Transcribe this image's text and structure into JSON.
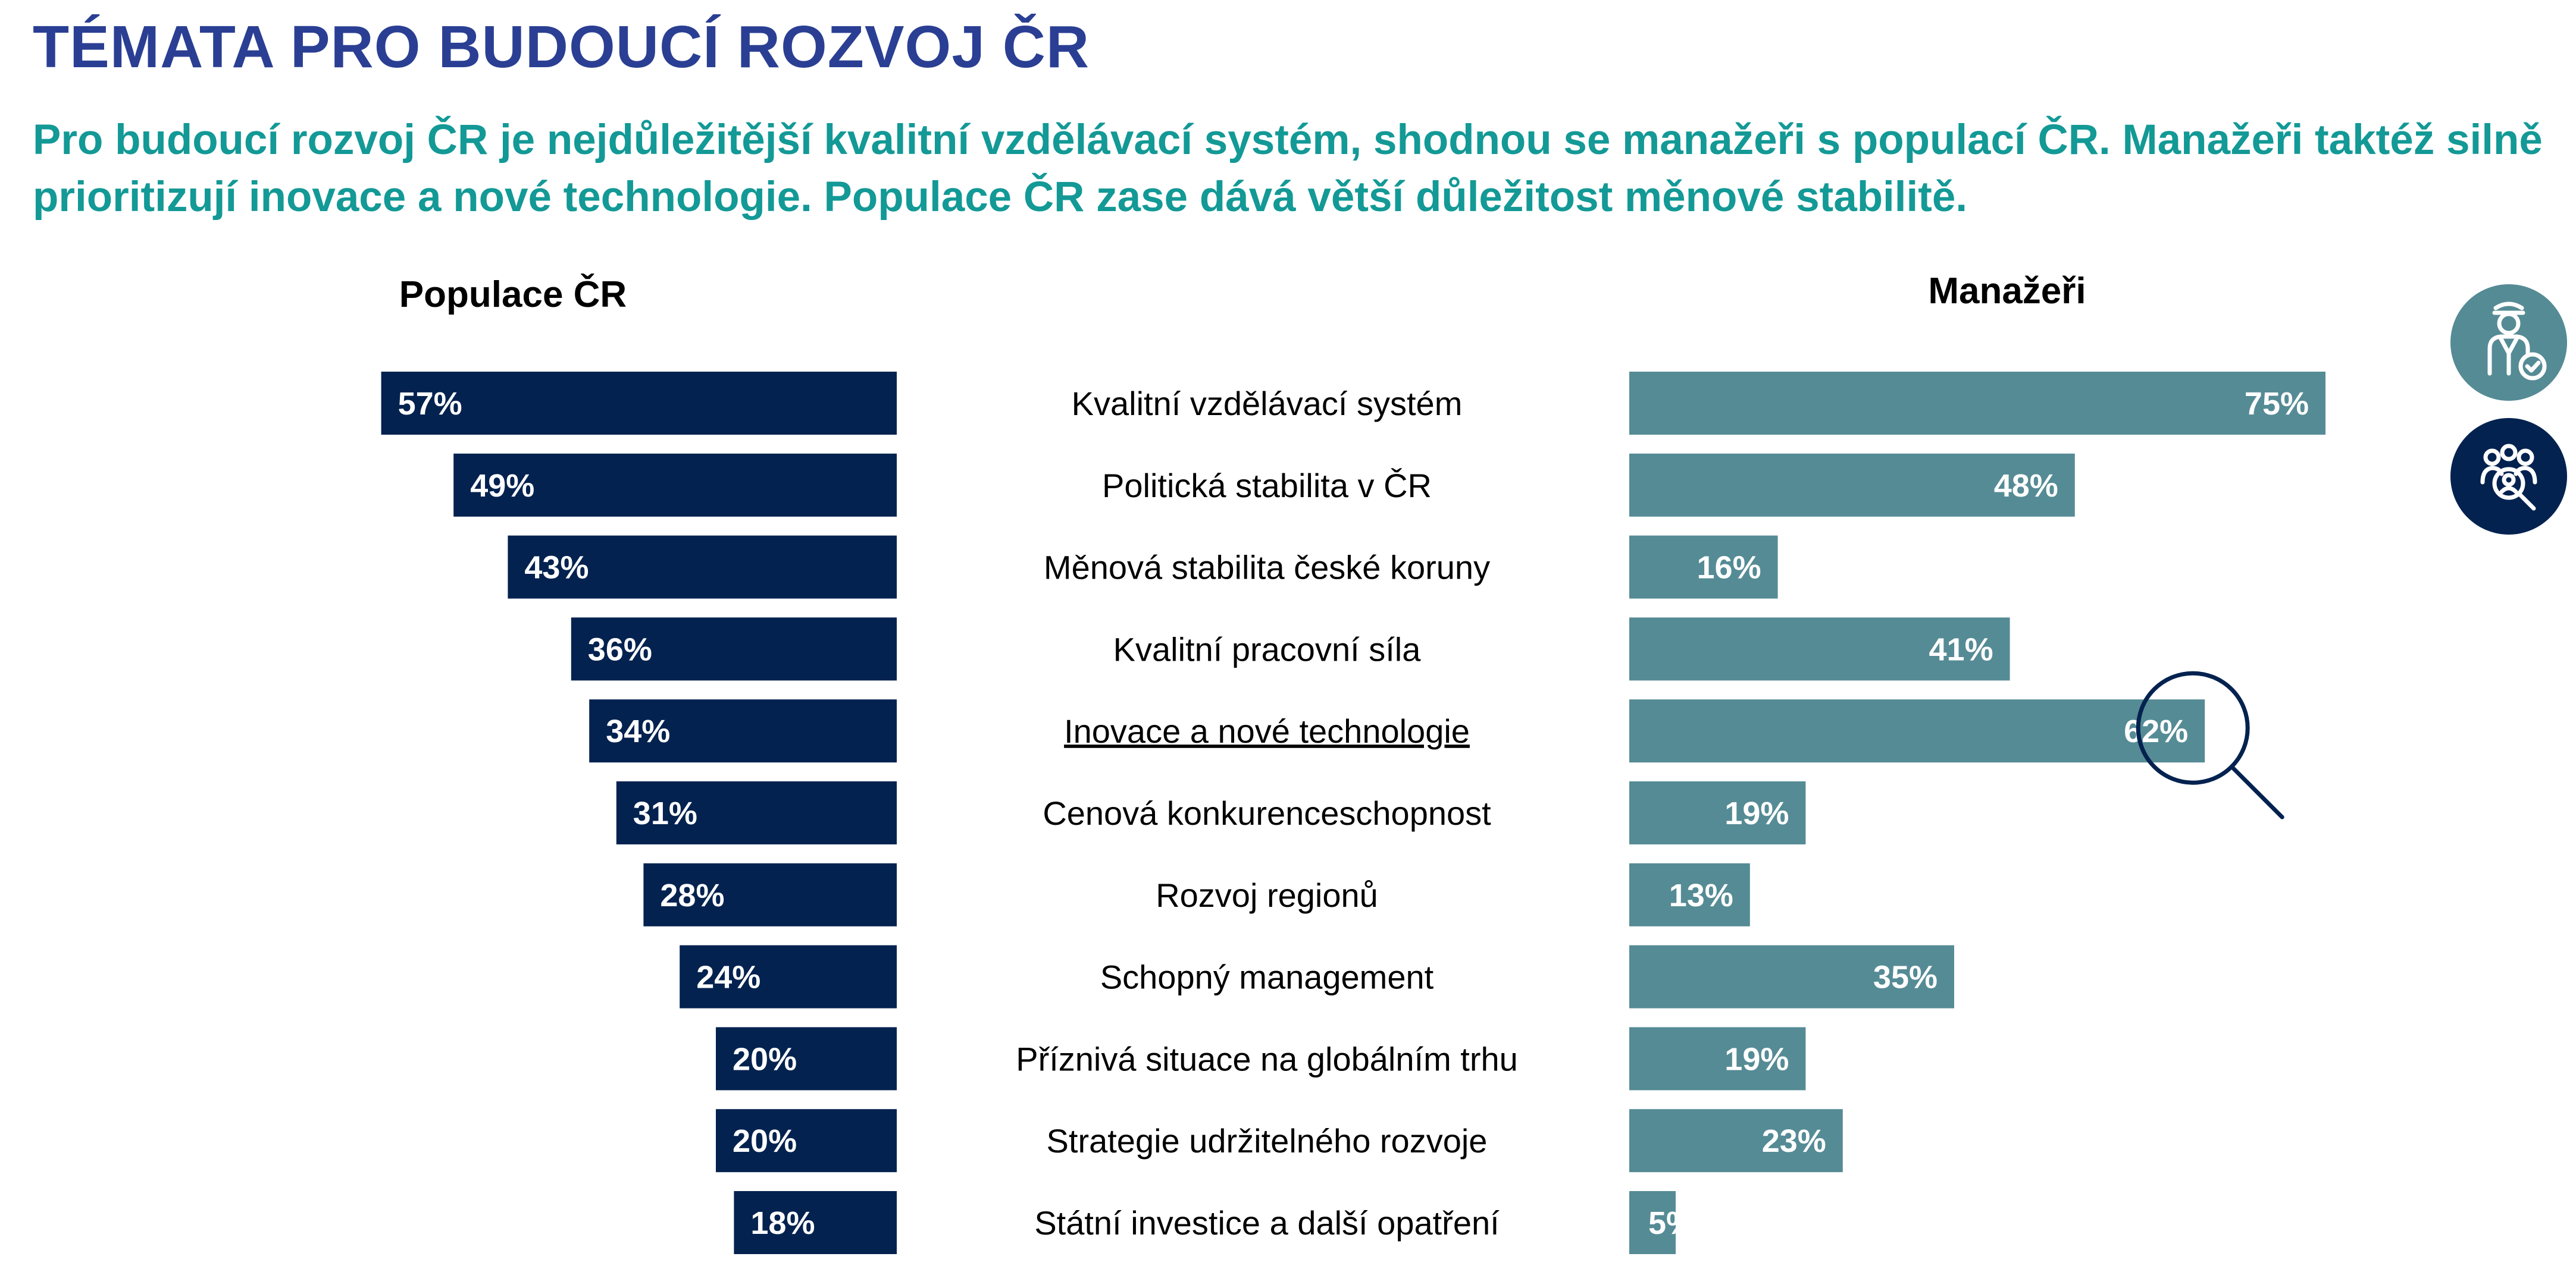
{
  "page": {
    "title": "TÉMATA PRO BUDOUCÍ ROZVOJ ČR",
    "subtitle": "Pro budoucí rozvoj ČR je nejdůležitější kvalitní vzdělávací systém, shodnou se manažeři s populací ČR. Manažeři taktéž silně prioritizují inovace a nové technologie. Populace ČR zase dává větší důležitost měnové stabilitě."
  },
  "colors": {
    "title": "#2a3f93",
    "subtitle": "#139996",
    "population_bar": "#03224f",
    "managers_bar": "#558b95",
    "icon_top_bg": "#558b95",
    "icon_bottom_bg": "#03224f",
    "highlight_ring": "#03224f"
  },
  "icons": [
    "manager-person-icon",
    "population-group-icon",
    "magnifier-icon"
  ],
  "chart_data": {
    "type": "bar",
    "layout": "butterfly",
    "categories": [
      "Kvalitní vzdělávací systém",
      "Politická stabilita v ČR",
      "Měnová stabilita české koruny",
      "Kvalitní pracovní síla",
      "Inovace a nové technologie",
      "Cenová konkurenceschopnost",
      "Rozvoj regionů",
      "Schopný management",
      "Příznivá situace na globálním trhu",
      "Strategie udržitelného rozvoje",
      "Státní investice a další opatření"
    ],
    "highlighted_category": "Inovace a nové technologie",
    "series": [
      {
        "name": "Populace ČR",
        "values": [
          57,
          49,
          43,
          36,
          34,
          31,
          28,
          24,
          20,
          20,
          18
        ],
        "labels": [
          "57%",
          "49%",
          "43%",
          "36%",
          "34%",
          "31%",
          "28%",
          "24%",
          "20%",
          "20%",
          "18%"
        ],
        "direction": "left"
      },
      {
        "name": "Manažeři",
        "values": [
          75,
          48,
          16,
          41,
          62,
          19,
          13,
          35,
          19,
          23,
          5
        ],
        "labels": [
          "75%",
          "48%",
          "16%",
          "41%",
          "62%",
          "19%",
          "13%",
          "35%",
          "19%",
          "23%",
          "5%"
        ],
        "direction": "right"
      }
    ],
    "unit": "%",
    "xlim": [
      0,
      100
    ],
    "grid": false,
    "legend": "column headers above bars"
  }
}
